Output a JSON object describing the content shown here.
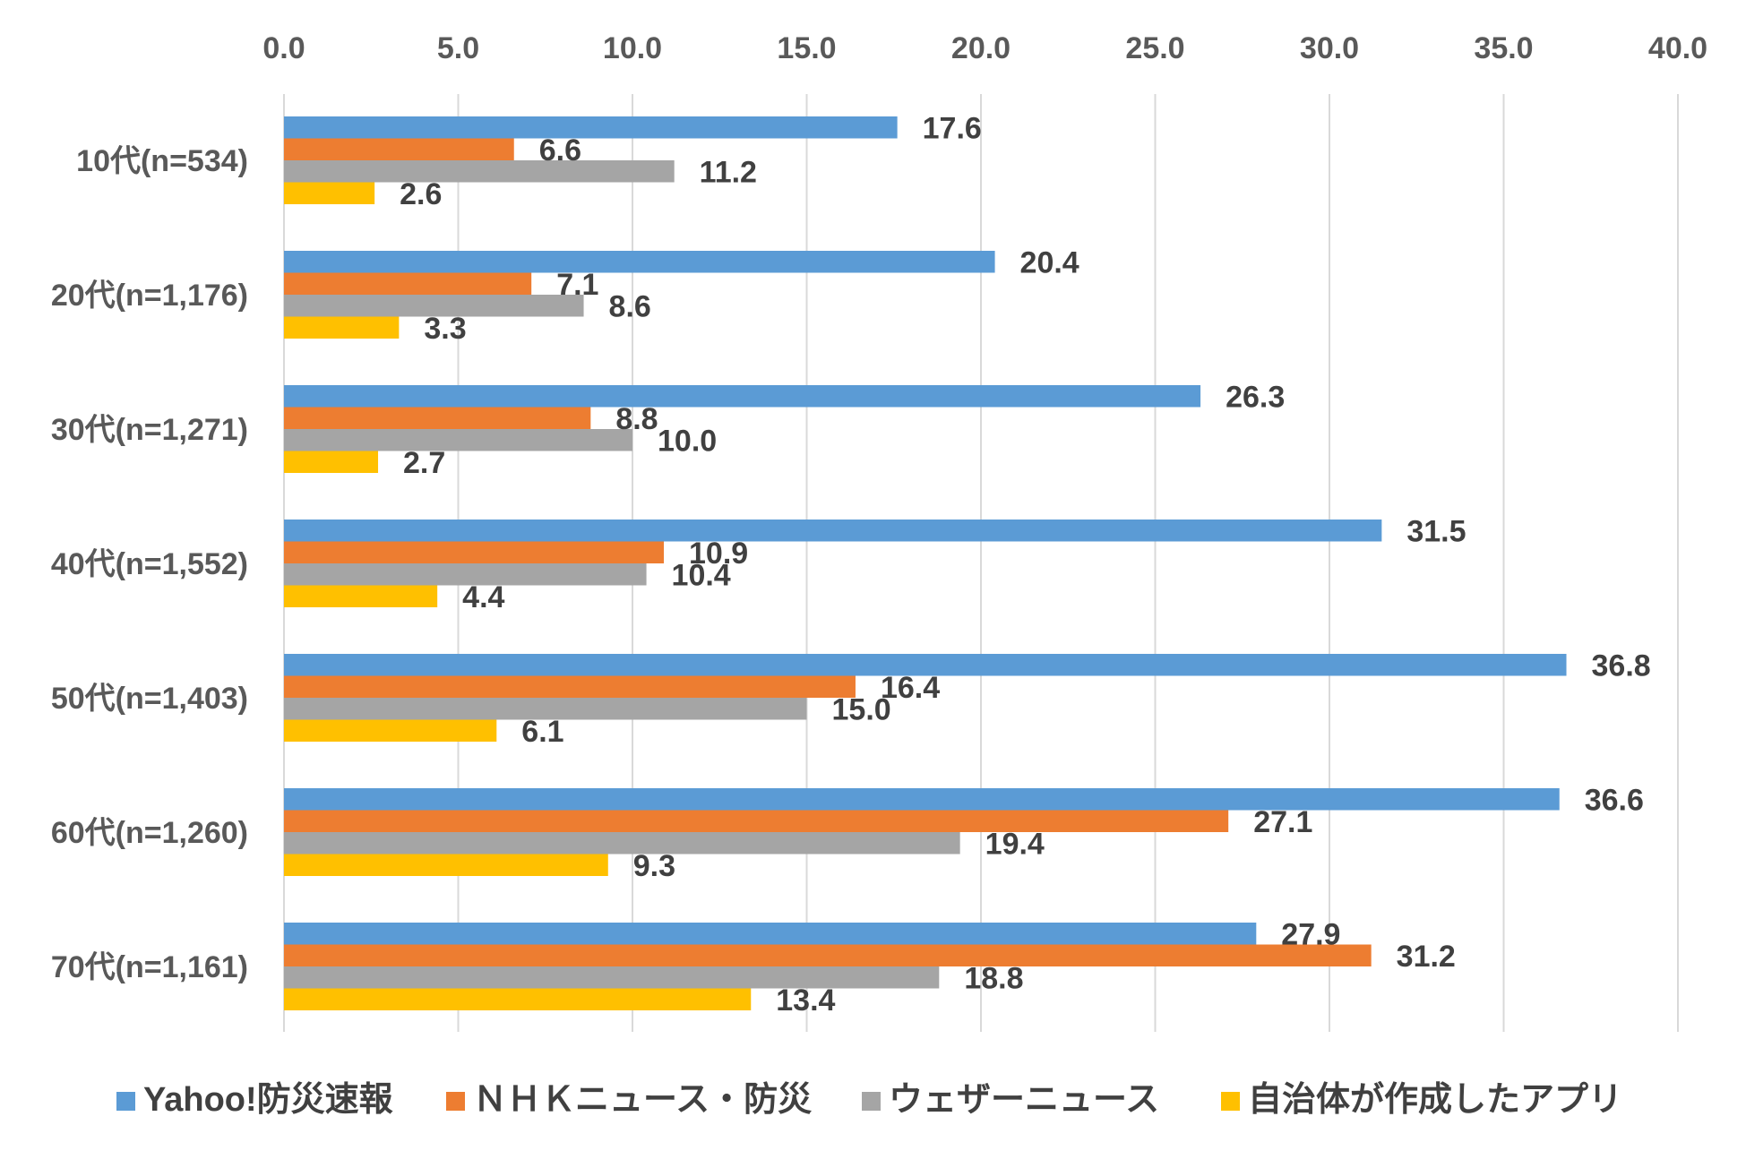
{
  "chart_data": {
    "type": "bar",
    "orientation": "horizontal",
    "categories": [
      "10代(n=534)",
      "20代(n=1,176)",
      "30代(n=1,271)",
      "40代(n=1,552)",
      "50代(n=1,403)",
      "60代(n=1,260)",
      "70代(n=1,161)"
    ],
    "series": [
      {
        "name": "Yahoo!防災速報",
        "color": "#5B9BD5",
        "values": [
          17.6,
          20.4,
          26.3,
          31.5,
          36.8,
          36.6,
          27.9
        ],
        "labels": [
          "17.6",
          "20.4",
          "26.3",
          "31.5",
          "36.8",
          "36.6",
          "27.9"
        ]
      },
      {
        "name": "ＮＨＫニュース・防災",
        "color": "#ED7D31",
        "values": [
          6.6,
          7.1,
          8.8,
          10.9,
          16.4,
          27.1,
          31.2
        ],
        "labels": [
          "6.6",
          "7.1",
          "8.8",
          "10.9",
          "16.4",
          "27.1",
          "31.2"
        ]
      },
      {
        "name": "ウェザーニュース",
        "color": "#A5A5A5",
        "values": [
          11.2,
          8.6,
          10.0,
          10.4,
          15.0,
          19.4,
          18.8
        ],
        "labels": [
          "11.2",
          "8.6",
          "10.0",
          "10.4",
          "15.0",
          "19.4",
          "18.8"
        ]
      },
      {
        "name": "自治体が作成したアプリ",
        "color": "#FFC000",
        "values": [
          2.6,
          3.3,
          2.7,
          4.4,
          6.1,
          9.3,
          13.4
        ],
        "labels": [
          "2.6",
          "3.3",
          "2.7",
          "4.4",
          "6.1",
          "9.3",
          "13.4"
        ]
      }
    ],
    "xlim": [
      0,
      40
    ],
    "x_ticks": [
      0,
      5,
      10,
      15,
      20,
      25,
      30,
      35,
      40
    ],
    "x_tick_labels": [
      "0.0",
      "5.0",
      "10.0",
      "15.0",
      "20.0",
      "25.0",
      "30.0",
      "35.0",
      "40.0"
    ],
    "x_axis_position": "top",
    "grid": true,
    "legend_position": "bottom",
    "title": "",
    "xlabel": "",
    "ylabel": ""
  }
}
